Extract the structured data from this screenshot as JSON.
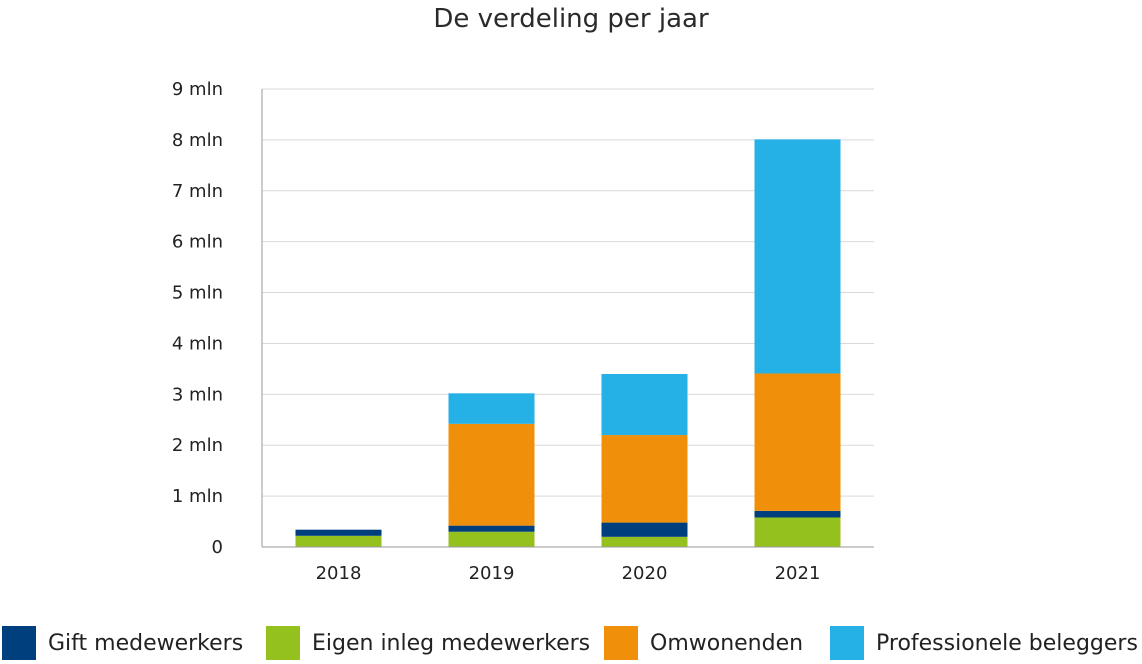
{
  "chart_data": {
    "type": "bar",
    "stacked": true,
    "title": "De verdeling per jaar",
    "xlabel": "",
    "ylabel": "",
    "categories": [
      "2018",
      "2019",
      "2020",
      "2021"
    ],
    "ylim": [
      0,
      9000000
    ],
    "yticks": [
      0,
      1000000,
      2000000,
      3000000,
      4000000,
      5000000,
      6000000,
      7000000,
      8000000,
      9000000
    ],
    "ytick_labels": [
      "0",
      "1 mln",
      "2 mln",
      "3 mln",
      "4 mln",
      "5 mln",
      "6 mln",
      "7 mln",
      "8 mln",
      "9 mln"
    ],
    "grid": true,
    "legend_position": "bottom",
    "series": [
      {
        "name": "Eigen inleg medewerkers",
        "color": "#95c11f",
        "values": [
          220000,
          300000,
          200000,
          580000
        ]
      },
      {
        "name": "Gift medewerkers",
        "color": "#003f7d",
        "values": [
          120000,
          120000,
          280000,
          130000
        ]
      },
      {
        "name": "Omwonenden",
        "color": "#f0900a",
        "values": [
          0,
          2000000,
          1720000,
          2700000
        ]
      },
      {
        "name": "Professionele beleggers",
        "color": "#25b0e6",
        "values": [
          0,
          600000,
          1200000,
          4600000
        ]
      }
    ],
    "legend_order": [
      "Gift medewerkers",
      "Eigen inleg medewerkers",
      "Omwonenden",
      "Professionele beleggers"
    ]
  }
}
